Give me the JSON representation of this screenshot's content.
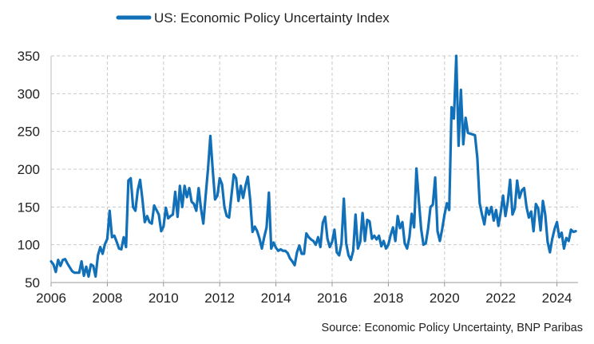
{
  "chart_data": {
    "type": "line",
    "title": "",
    "xlabel": "",
    "ylabel": "",
    "xlim": [
      2006,
      2024.75
    ],
    "ylim": [
      50,
      350
    ],
    "xticks": [
      2006,
      2008,
      2010,
      2012,
      2014,
      2016,
      2018,
      2020,
      2022,
      2024
    ],
    "yticks": [
      50,
      100,
      150,
      200,
      250,
      300,
      350
    ],
    "xtick_labels": [
      "2006",
      "2008",
      "2010",
      "2012",
      "2014",
      "2016",
      "2018",
      "2020",
      "2022",
      "2024"
    ],
    "ytick_labels": [
      "50",
      "100",
      "150",
      "200",
      "250",
      "300",
      "350"
    ],
    "grid": "dashed both axes",
    "legend_position": "top",
    "series": [
      {
        "name": "US: Economic Policy Uncertainty Index",
        "color": "#1170b8",
        "x": [
          2006.0,
          2006.083,
          2006.167,
          2006.25,
          2006.333,
          2006.417,
          2006.5,
          2006.583,
          2006.667,
          2006.75,
          2006.833,
          2006.917,
          2007.0,
          2007.083,
          2007.167,
          2007.25,
          2007.333,
          2007.417,
          2007.5,
          2007.583,
          2007.667,
          2007.75,
          2007.833,
          2007.917,
          2008.0,
          2008.083,
          2008.167,
          2008.25,
          2008.333,
          2008.417,
          2008.5,
          2008.583,
          2008.667,
          2008.75,
          2008.833,
          2008.917,
          2009.0,
          2009.083,
          2009.167,
          2009.25,
          2009.333,
          2009.417,
          2009.5,
          2009.583,
          2009.667,
          2009.75,
          2009.833,
          2009.917,
          2010.0,
          2010.083,
          2010.167,
          2010.25,
          2010.333,
          2010.417,
          2010.5,
          2010.583,
          2010.667,
          2010.75,
          2010.833,
          2010.917,
          2011.0,
          2011.083,
          2011.167,
          2011.25,
          2011.333,
          2011.417,
          2011.5,
          2011.583,
          2011.667,
          2011.75,
          2011.833,
          2011.917,
          2012.0,
          2012.083,
          2012.167,
          2012.25,
          2012.333,
          2012.417,
          2012.5,
          2012.583,
          2012.667,
          2012.75,
          2012.833,
          2012.917,
          2013.0,
          2013.083,
          2013.167,
          2013.25,
          2013.333,
          2013.417,
          2013.5,
          2013.583,
          2013.667,
          2013.75,
          2013.833,
          2013.917,
          2014.0,
          2014.083,
          2014.167,
          2014.25,
          2014.333,
          2014.417,
          2014.5,
          2014.583,
          2014.667,
          2014.75,
          2014.833,
          2014.917,
          2015.0,
          2015.083,
          2015.167,
          2015.25,
          2015.333,
          2015.417,
          2015.5,
          2015.583,
          2015.667,
          2015.75,
          2015.833,
          2015.917,
          2016.0,
          2016.083,
          2016.167,
          2016.25,
          2016.333,
          2016.417,
          2016.5,
          2016.583,
          2016.667,
          2016.75,
          2016.833,
          2016.917,
          2017.0,
          2017.083,
          2017.167,
          2017.25,
          2017.333,
          2017.417,
          2017.5,
          2017.583,
          2017.667,
          2017.75,
          2017.833,
          2017.917,
          2018.0,
          2018.083,
          2018.167,
          2018.25,
          2018.333,
          2018.417,
          2018.5,
          2018.583,
          2018.667,
          2018.75,
          2018.833,
          2018.917,
          2019.0,
          2019.083,
          2019.167,
          2019.25,
          2019.333,
          2019.417,
          2019.5,
          2019.583,
          2019.667,
          2019.75,
          2019.833,
          2019.917,
          2020.0,
          2020.083,
          2020.167,
          2020.25,
          2020.333,
          2020.417,
          2020.5,
          2020.583,
          2020.667,
          2020.75,
          2020.833,
          2020.917,
          2021.0,
          2021.083,
          2021.167,
          2021.25,
          2021.333,
          2021.417,
          2021.5,
          2021.583,
          2021.667,
          2021.75,
          2021.833,
          2021.917,
          2022.0,
          2022.083,
          2022.167,
          2022.25,
          2022.333,
          2022.417,
          2022.5,
          2022.583,
          2022.667,
          2022.75,
          2022.833,
          2022.917,
          2023.0,
          2023.083,
          2023.167,
          2023.25,
          2023.333,
          2023.417,
          2023.5,
          2023.583,
          2023.667,
          2023.75,
          2023.833,
          2023.917,
          2024.0,
          2024.083,
          2024.167,
          2024.25,
          2024.333,
          2024.417,
          2024.5,
          2024.583,
          2024.667
        ],
        "values": [
          78,
          74,
          64,
          80,
          72,
          80,
          81,
          75,
          70,
          65,
          63,
          63,
          63,
          78,
          59,
          71,
          58,
          74,
          72,
          58,
          86,
          97,
          88,
          101,
          108,
          145,
          110,
          112,
          104,
          95,
          94,
          110,
          97,
          185,
          188,
          150,
          145,
          172,
          186,
          160,
          130,
          138,
          130,
          128,
          152,
          146,
          140,
          118,
          124,
          149,
          135,
          138,
          140,
          170,
          137,
          178,
          150,
          178,
          163,
          175,
          157,
          154,
          145,
          175,
          148,
          128,
          165,
          200,
          244,
          200,
          160,
          165,
          188,
          180,
          150,
          138,
          136,
          165,
          193,
          188,
          158,
          178,
          162,
          178,
          190,
          160,
          117,
          124,
          118,
          108,
          95,
          110,
          123,
          169,
          95,
          103,
          96,
          92,
          94,
          92,
          92,
          89,
          82,
          78,
          73,
          90,
          99,
          88,
          88,
          115,
          110,
          107,
          105,
          100,
          110,
          97,
          129,
          137,
          108,
          97,
          104,
          120,
          90,
          86,
          102,
          161,
          102,
          86,
          80,
          92,
          140,
          95,
          104,
          142,
          105,
          133,
          131,
          108,
          112,
          107,
          112,
          98,
          105,
          95,
          100,
          113,
          123,
          105,
          138,
          122,
          130,
          102,
          95,
          110,
          141,
          123,
          201,
          160,
          121,
          100,
          102,
          122,
          150,
          153,
          189,
          118,
          105,
          121,
          140,
          155,
          146,
          282,
          267,
          350,
          231,
          305,
          233,
          268,
          248,
          247,
          246,
          245,
          215,
          155,
          140,
          127,
          149,
          140,
          150,
          132,
          146,
          125,
          143,
          165,
          138,
          157,
          186,
          140,
          148,
          185,
          162,
          172,
          175,
          150,
          136,
          144,
          118,
          154,
          148,
          119,
          158,
          140,
          104,
          90,
          108,
          121,
          130,
          110,
          116,
          95,
          109,
          105,
          120,
          117,
          118
        ]
      }
    ],
    "source": "Source: Economic Policy Uncertainty, BNP Paribas"
  }
}
